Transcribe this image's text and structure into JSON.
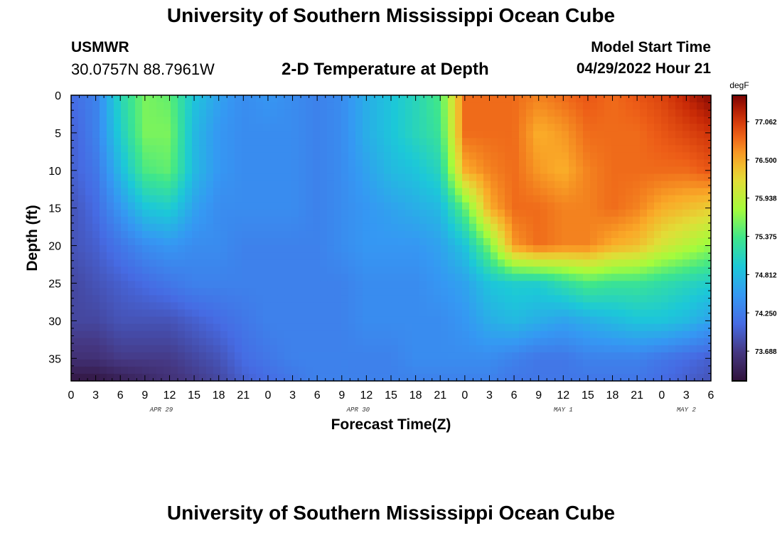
{
  "page": {
    "title": "University of Southern Mississippi Ocean Cube",
    "bottom_title": "University of Southern Mississippi Ocean Cube",
    "station": {
      "id": "USMWR",
      "coords": "30.0757N  88.7961W"
    },
    "plot_title": "2-D Temperature at Depth",
    "model_start": {
      "label": "Model Start Time",
      "value": "04/29/2022 Hour 21"
    }
  },
  "chart_data": {
    "type": "heatmap",
    "title": "2-D Temperature at Depth",
    "xlabel": "Forecast Time(Z)",
    "ylabel": "Depth (ft)",
    "x_hours": [
      0,
      3,
      6,
      9,
      12,
      15,
      18,
      21,
      24,
      27,
      30,
      33,
      36,
      39,
      42,
      45,
      48,
      51,
      54,
      57,
      60,
      63,
      66,
      69,
      72,
      75,
      78
    ],
    "x_tick_labels": [
      "0",
      "3",
      "6",
      "9",
      "12",
      "15",
      "18",
      "21",
      "0",
      "3",
      "6",
      "9",
      "12",
      "15",
      "18",
      "21",
      "0",
      "3",
      "6",
      "9",
      "12",
      "15",
      "18",
      "21",
      "0",
      "3",
      "6"
    ],
    "date_labels": [
      {
        "label": "APR 29",
        "hour": 11
      },
      {
        "label": "APR 30",
        "hour": 35
      },
      {
        "label": "MAY 1",
        "hour": 60
      },
      {
        "label": "MAY 2",
        "hour": 75
      }
    ],
    "xlim": [
      0,
      78
    ],
    "depth_ft": [
      0,
      5,
      10,
      15,
      20,
      25,
      30,
      35,
      38
    ],
    "y_ticks": [
      0,
      5,
      10,
      15,
      20,
      25,
      30,
      35
    ],
    "ylim": [
      0,
      38
    ],
    "y_reversed": true,
    "colorbar": {
      "unit": "degF",
      "range": [
        73.25,
        77.45
      ],
      "tick_values": [
        77.062,
        76.5,
        75.938,
        75.375,
        74.812,
        74.25,
        73.688
      ],
      "tick_labels": [
        "77.062",
        "76.500",
        "75.938",
        "75.375",
        "74.812",
        "74.250",
        "73.688"
      ]
    },
    "values_degF": [
      [
        74.1,
        74.3,
        75.1,
        75.6,
        75.5,
        74.9,
        74.6,
        74.4,
        74.5,
        74.4,
        74.3,
        74.4,
        74.7,
        74.9,
        75.1,
        75.4,
        76.8,
        76.8,
        76.8,
        76.7,
        76.8,
        76.9,
        76.8,
        76.9,
        77.0,
        77.2,
        77.4
      ],
      [
        74.0,
        74.3,
        75.0,
        75.6,
        75.6,
        74.8,
        74.5,
        74.4,
        74.4,
        74.4,
        74.3,
        74.4,
        74.7,
        74.9,
        75.1,
        75.3,
        76.8,
        76.8,
        76.8,
        76.5,
        76.6,
        76.8,
        76.8,
        76.8,
        76.9,
        77.0,
        77.1
      ],
      [
        74.0,
        74.2,
        74.8,
        75.4,
        75.5,
        74.8,
        74.5,
        74.4,
        74.4,
        74.4,
        74.3,
        74.4,
        74.6,
        74.8,
        74.9,
        75.1,
        76.5,
        76.7,
        76.8,
        76.6,
        76.5,
        76.7,
        76.8,
        76.8,
        76.8,
        76.8,
        76.9
      ],
      [
        73.9,
        74.1,
        74.5,
        74.9,
        75.0,
        74.6,
        74.4,
        74.4,
        74.4,
        74.4,
        74.3,
        74.4,
        74.5,
        74.6,
        74.7,
        74.8,
        75.5,
        76.5,
        76.8,
        76.8,
        76.7,
        76.7,
        76.8,
        76.7,
        76.5,
        76.4,
        76.3
      ],
      [
        73.9,
        74.0,
        74.2,
        74.4,
        74.5,
        74.4,
        74.4,
        74.3,
        74.3,
        74.3,
        74.3,
        74.4,
        74.5,
        74.5,
        74.5,
        74.6,
        74.9,
        75.6,
        76.6,
        76.8,
        76.7,
        76.7,
        76.5,
        76.4,
        76.1,
        75.9,
        75.7
      ],
      [
        73.8,
        73.9,
        74.0,
        74.1,
        74.2,
        74.3,
        74.3,
        74.3,
        74.3,
        74.3,
        74.3,
        74.3,
        74.4,
        74.4,
        74.4,
        74.5,
        74.6,
        74.9,
        75.0,
        75.0,
        75.2,
        75.4,
        75.3,
        75.3,
        75.2,
        75.1,
        75.0
      ],
      [
        73.8,
        73.8,
        73.9,
        73.9,
        73.9,
        74.0,
        74.1,
        74.2,
        74.3,
        74.3,
        74.3,
        74.3,
        74.4,
        74.4,
        74.4,
        74.4,
        74.5,
        74.7,
        74.8,
        74.7,
        74.6,
        74.7,
        74.8,
        74.9,
        74.9,
        74.8,
        74.6
      ],
      [
        73.6,
        73.6,
        73.7,
        73.7,
        73.7,
        73.8,
        73.9,
        74.1,
        74.2,
        74.3,
        74.3,
        74.3,
        74.3,
        74.3,
        74.4,
        74.4,
        74.4,
        74.4,
        74.3,
        74.2,
        74.2,
        74.3,
        74.3,
        74.3,
        74.2,
        74.1,
        74.0
      ],
      [
        73.3,
        73.3,
        73.4,
        73.5,
        73.6,
        73.7,
        73.8,
        74.0,
        74.1,
        74.2,
        74.3,
        74.3,
        74.3,
        74.3,
        74.3,
        74.3,
        74.3,
        74.3,
        74.2,
        74.2,
        74.2,
        74.2,
        74.2,
        74.2,
        74.1,
        74.0,
        73.9
      ]
    ]
  }
}
